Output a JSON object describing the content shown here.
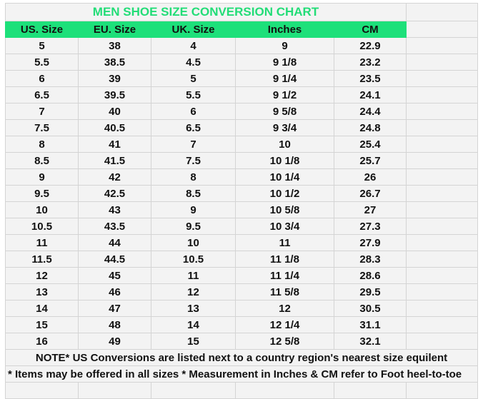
{
  "title": "MEN SHOE SIZE CONVERSION CHART",
  "colors": {
    "accent": "#1de07a",
    "title_text": "#22dd77"
  },
  "headers": [
    "US. Size",
    "EU. Size",
    "UK. Size",
    "Inches",
    "CM"
  ],
  "rows": [
    [
      "5",
      "38",
      "4",
      "9",
      "22.9"
    ],
    [
      "5.5",
      "38.5",
      "4.5",
      "9 1/8",
      "23.2"
    ],
    [
      "6",
      "39",
      "5",
      "9 1/4",
      "23.5"
    ],
    [
      "6.5",
      "39.5",
      "5.5",
      "9 1/2",
      "24.1"
    ],
    [
      "7",
      "40",
      "6",
      "9 5/8",
      "24.4"
    ],
    [
      "7.5",
      "40.5",
      "6.5",
      "9 3/4",
      "24.8"
    ],
    [
      "8",
      "41",
      "7",
      "10",
      "25.4"
    ],
    [
      "8.5",
      "41.5",
      "7.5",
      "10 1/8",
      "25.7"
    ],
    [
      "9",
      "42",
      "8",
      "10 1/4",
      "26"
    ],
    [
      "9.5",
      "42.5",
      "8.5",
      "10 1/2",
      "26.7"
    ],
    [
      "10",
      "43",
      "9",
      "10 5/8",
      "27"
    ],
    [
      "10.5",
      "43.5",
      "9.5",
      "10 3/4",
      "27.3"
    ],
    [
      "11",
      "44",
      "10",
      "11",
      "27.9"
    ],
    [
      "11.5",
      "44.5",
      "10.5",
      "11 1/8",
      "28.3"
    ],
    [
      "12",
      "45",
      "11",
      "11 1/4",
      "28.6"
    ],
    [
      "13",
      "46",
      "12",
      "11 5/8",
      "29.5"
    ],
    [
      "14",
      "47",
      "13",
      "12",
      "30.5"
    ],
    [
      "15",
      "48",
      "14",
      "12 1/4",
      "31.1"
    ],
    [
      "16",
      "49",
      "15",
      "12 5/8",
      "32.1"
    ]
  ],
  "notes": [
    "NOTE* US Conversions are listed next to a country region's nearest size equilent",
    "* Items may be offered in all sizes * Measurement in Inches & CM refer to Foot heel-to-toe"
  ]
}
